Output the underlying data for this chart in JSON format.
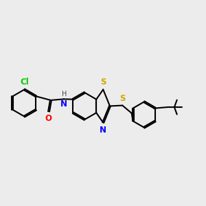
{
  "bg_color": "#ececec",
  "bond_color": "#000000",
  "line_width": 1.5,
  "atom_colors": {
    "Cl": "#00cc00",
    "N": "#0000ff",
    "S": "#ccaa00",
    "O": "#ff0000"
  },
  "font_size": 8.5,
  "dbo": 0.022
}
